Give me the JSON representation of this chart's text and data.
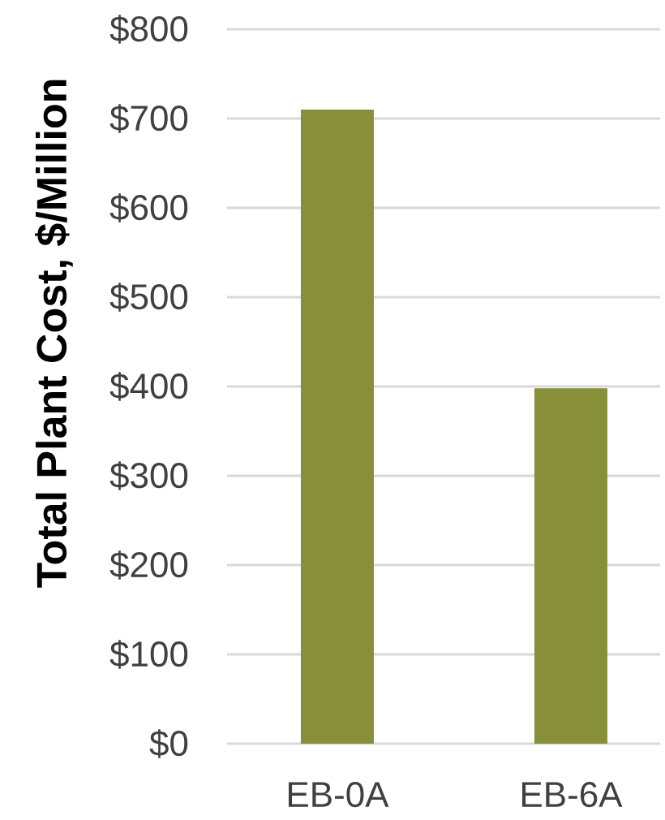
{
  "chart_data": {
    "type": "bar",
    "ylabel": "Total Plant Cost, $/Million",
    "categories": [
      "EB-0A",
      "EB-6A"
    ],
    "values": [
      710,
      398
    ],
    "color": "#878f38",
    "ylim": [
      0,
      800
    ],
    "yticks": [
      {
        "value": 0,
        "label": "$0"
      },
      {
        "value": 100,
        "label": "$100"
      },
      {
        "value": 200,
        "label": "$200"
      },
      {
        "value": 300,
        "label": "$300"
      },
      {
        "value": 400,
        "label": "$400"
      },
      {
        "value": 500,
        "label": "$500"
      },
      {
        "value": 600,
        "label": "$600"
      },
      {
        "value": 700,
        "label": "$700"
      },
      {
        "value": 800,
        "label": "$800"
      }
    ],
    "grid": "y"
  }
}
